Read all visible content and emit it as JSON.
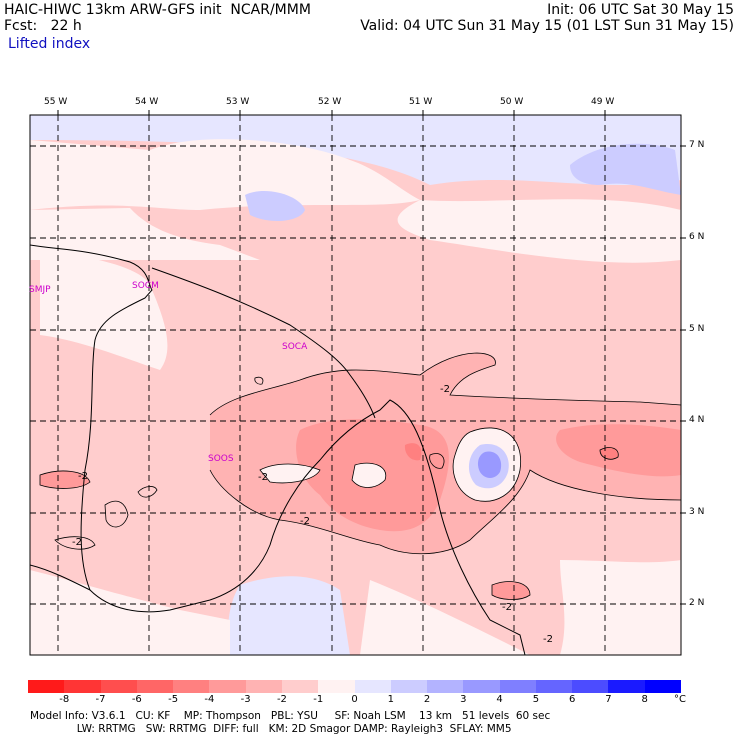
{
  "header": {
    "line1_left": "HAIC-HIWC 13km ARW-GFS init  NCAR/MMM",
    "line1_right": "Init: 06 UTC Sat 30 May 15",
    "line2_left": "Fcst:   22 h",
    "line2_right": "Valid: 04 UTC Sun 31 May 15 (01 LST Sun 31 May 15)",
    "field": "Lifted index"
  },
  "map": {
    "longitudes": [
      "55 W",
      "54 W",
      "53 W",
      "52 W",
      "51 W",
      "50 W",
      "49 W"
    ],
    "latitudes": [
      "7 N",
      "6 N",
      "5 N",
      "4 N",
      "3 N",
      "2 N"
    ],
    "stations": [
      {
        "id": "smjp",
        "name": "SMJP"
      },
      {
        "id": "socm",
        "name": "SOCM"
      },
      {
        "id": "soca",
        "name": "SOCA"
      },
      {
        "id": "soos",
        "name": "SOOS"
      }
    ],
    "contour_labels": [
      "-2",
      "-2",
      "-2",
      "-2",
      "-2",
      "-2",
      "-2"
    ]
  },
  "legend": {
    "unit": "°C",
    "ticks": [
      "-8",
      "-7",
      "-6",
      "-5",
      "-4",
      "-3",
      "-2",
      "-1",
      "0",
      "1",
      "2",
      "3",
      "4",
      "5",
      "6",
      "7",
      "8"
    ],
    "colors": [
      "#ff1a1a",
      "#ff3535",
      "#ff4e4e",
      "#ff6666",
      "#ff8080",
      "#ff9a9a",
      "#ffb3b3",
      "#ffcdcd",
      "#fff2f2",
      "#e6e6ff",
      "#ccccff",
      "#b3b3ff",
      "#9999ff",
      "#7f7fff",
      "#6565ff",
      "#4c4cff",
      "#1a1aff",
      "#0000ff"
    ]
  },
  "footer": {
    "line1": "Model Info: V3.6.1   CU: KF    MP: Thompson   PBL: YSU     SF: Noah LSM    13 km   51 levels  60 sec",
    "line2": "              LW: RRTMG   SW: RRTMG  DIFF: full   KM: 2D Smagor DAMP: Rayleigh3  SFLAY: MM5"
  }
}
